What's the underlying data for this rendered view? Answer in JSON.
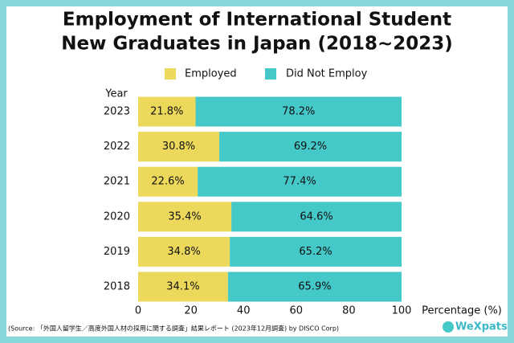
{
  "chart_data": {
    "type": "stacked-bar-horizontal",
    "title": "Employment of International Student",
    "subtitle": "New Graduates in Japan (2018~2023)",
    "y_label": "Year",
    "x_label": "Percentage (%)",
    "categories": [
      "2023",
      "2022",
      "2021",
      "2020",
      "2019",
      "2018"
    ],
    "series": [
      {
        "name": "Employed",
        "color": "#ecd85b",
        "values": [
          21.8,
          30.8,
          22.6,
          35.4,
          34.8,
          34.1
        ],
        "value_labels": [
          "21.8%",
          "30.8%",
          "22.6%",
          "35.4%",
          "34.8%",
          "34.1%"
        ]
      },
      {
        "name": "Did Not Employ",
        "color": "#45c8c8",
        "values": [
          78.2,
          69.2,
          77.4,
          64.6,
          65.2,
          65.9
        ],
        "value_labels": [
          "78.2%",
          "69.2%",
          "77.4%",
          "64.6%",
          "65.2%",
          "65.9%"
        ]
      }
    ],
    "xlim": [
      0,
      100
    ],
    "xticks": [
      0,
      20,
      40,
      60,
      80,
      100
    ],
    "source": "(Source: 「外国人留学生／高度外国人材の採用に関する調査」結果レポート (2023年12月調査) by DISCO Corp)",
    "logo": "WeXpats"
  }
}
